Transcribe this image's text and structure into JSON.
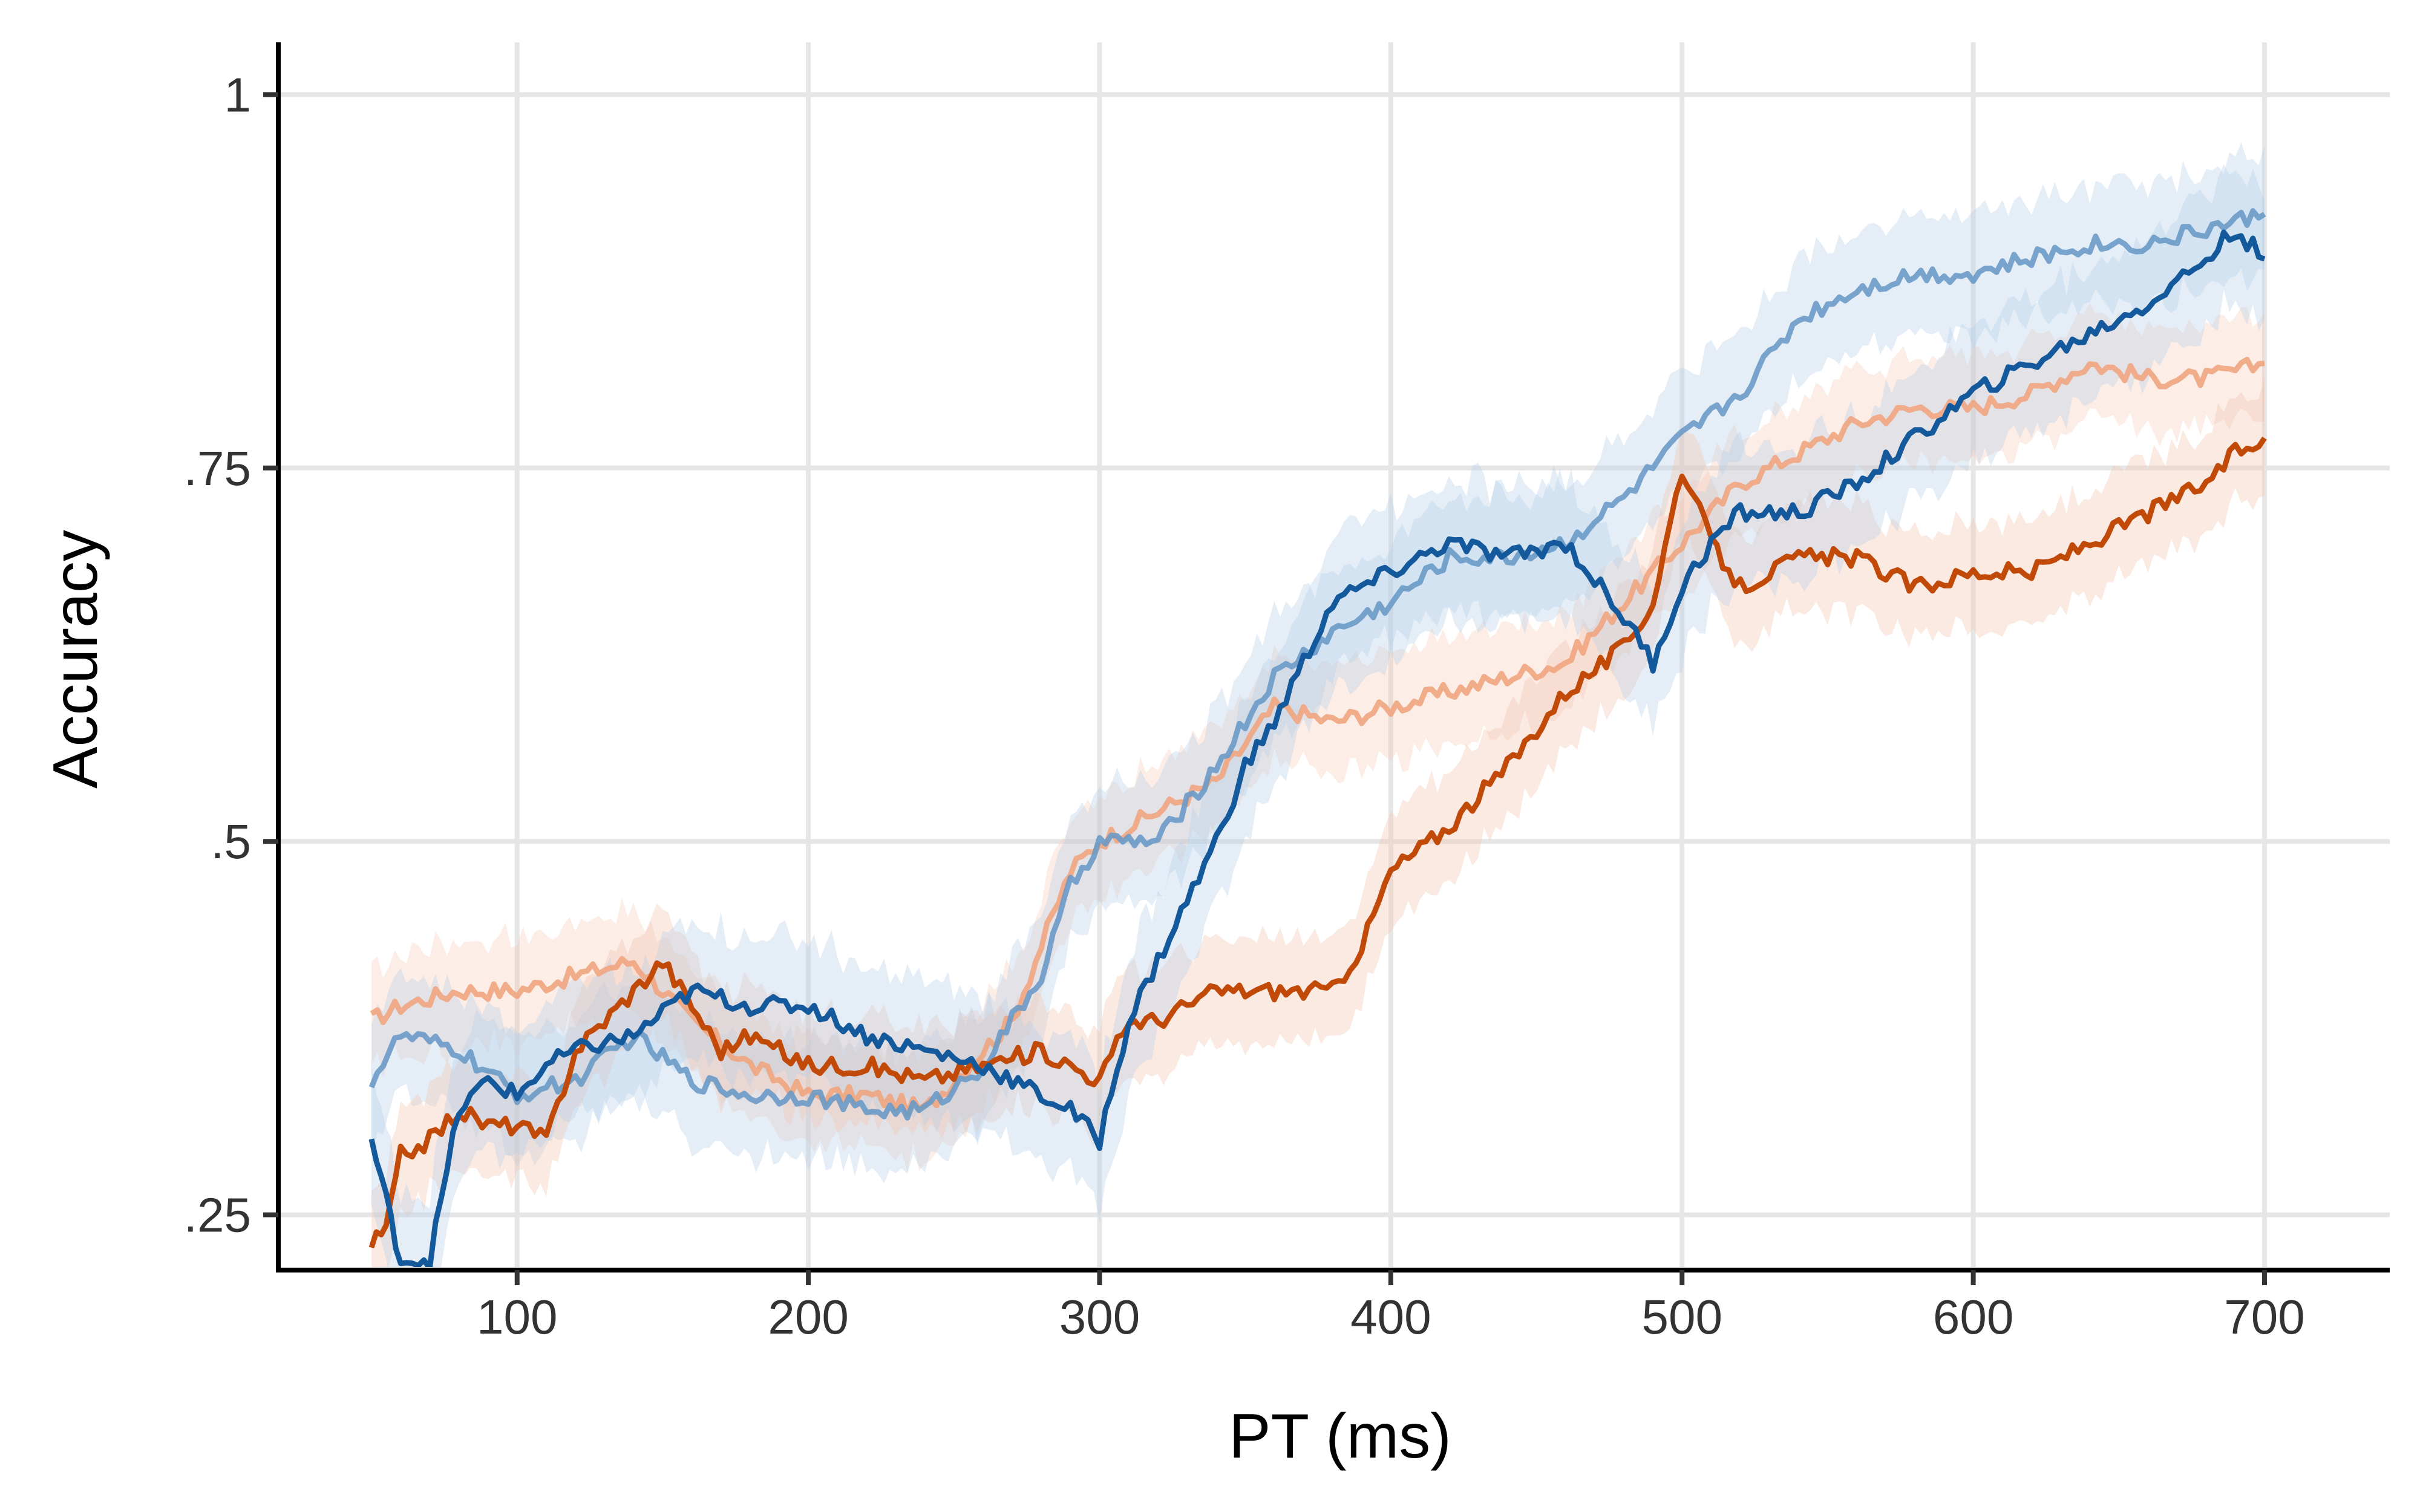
{
  "chart_data": {
    "type": "line",
    "xlabel": "PT (ms)",
    "ylabel": "Accuracy",
    "xlim": [
      18,
      743
    ],
    "ylim": [
      0.215,
      1.035
    ],
    "x_ticks": [
      {
        "value": 100,
        "label": "100"
      },
      {
        "value": 200,
        "label": "200"
      },
      {
        "value": 300,
        "label": "300"
      },
      {
        "value": 400,
        "label": "400"
      },
      {
        "value": 500,
        "label": "500"
      },
      {
        "value": 600,
        "label": "600"
      },
      {
        "value": 700,
        "label": "700"
      }
    ],
    "y_ticks": [
      {
        "value": 0.25,
        "label": ".25"
      },
      {
        "value": 0.5,
        "label": ".5"
      },
      {
        "value": 0.75,
        "label": ".75"
      },
      {
        "value": 1.0,
        "label": "1"
      }
    ],
    "grid": true,
    "legend": "none",
    "series": [
      {
        "color": "#f0a57f",
        "line_opacity": 0.9,
        "band_color": "#f6c5ab",
        "band_opacity": 0.3,
        "x": [
          50,
          60,
          80,
          100,
          120,
          140,
          160,
          180,
          200,
          220,
          240,
          260,
          270,
          280,
          290,
          300,
          320,
          340,
          360,
          380,
          400,
          420,
          440,
          460,
          480,
          500,
          520,
          540,
          560,
          580,
          600,
          620,
          640,
          660,
          680,
          700
        ],
        "y": [
          0.38,
          0.39,
          0.4,
          0.4,
          0.41,
          0.42,
          0.38,
          0.35,
          0.33,
          0.33,
          0.32,
          0.36,
          0.38,
          0.43,
          0.48,
          0.5,
          0.52,
          0.54,
          0.59,
          0.58,
          0.59,
          0.6,
          0.61,
          0.62,
          0.66,
          0.7,
          0.74,
          0.76,
          0.78,
          0.79,
          0.79,
          0.8,
          0.82,
          0.81,
          0.81,
          0.82
        ],
        "band": 0.035
      },
      {
        "color": "#6a9ac7",
        "line_opacity": 0.9,
        "band_color": "#b5cfe7",
        "band_opacity": 0.35,
        "x": [
          50,
          60,
          80,
          100,
          120,
          140,
          160,
          180,
          200,
          220,
          240,
          260,
          280,
          290,
          300,
          320,
          340,
          360,
          380,
          400,
          420,
          440,
          460,
          480,
          500,
          520,
          540,
          560,
          580,
          600,
          620,
          640,
          660,
          680,
          700
        ],
        "y": [
          0.34,
          0.37,
          0.36,
          0.33,
          0.34,
          0.37,
          0.34,
          0.33,
          0.33,
          0.32,
          0.32,
          0.35,
          0.41,
          0.47,
          0.5,
          0.5,
          0.55,
          0.61,
          0.64,
          0.66,
          0.69,
          0.69,
          0.7,
          0.73,
          0.77,
          0.8,
          0.85,
          0.87,
          0.88,
          0.88,
          0.89,
          0.9,
          0.9,
          0.91,
          0.92
        ],
        "band": 0.04
      },
      {
        "color": "#c14a09",
        "line_opacity": 1,
        "band_color": "#f2c4ab",
        "band_opacity": 0.35,
        "x": [
          50,
          55,
          60,
          70,
          80,
          90,
          100,
          110,
          120,
          130,
          140,
          150,
          160,
          170,
          180,
          200,
          220,
          240,
          260,
          280,
          300,
          310,
          320,
          340,
          360,
          380,
          390,
          400,
          420,
          440,
          460,
          480,
          490,
          500,
          510,
          520,
          540,
          560,
          580,
          600,
          620,
          640,
          660,
          680,
          690,
          700
        ],
        "y": [
          0.23,
          0.24,
          0.29,
          0.3,
          0.32,
          0.31,
          0.31,
          0.3,
          0.36,
          0.38,
          0.4,
          0.42,
          0.39,
          0.36,
          0.37,
          0.35,
          0.35,
          0.34,
          0.35,
          0.36,
          0.34,
          0.38,
          0.38,
          0.4,
          0.4,
          0.4,
          0.43,
          0.48,
          0.51,
          0.55,
          0.6,
          0.63,
          0.66,
          0.75,
          0.7,
          0.67,
          0.69,
          0.69,
          0.67,
          0.68,
          0.68,
          0.7,
          0.72,
          0.74,
          0.76,
          0.77
        ],
        "band": 0.035
      },
      {
        "color": "#13599b",
        "line_opacity": 1,
        "band_color": "#b5cfe7",
        "band_opacity": 0.35,
        "x": [
          50,
          55,
          60,
          70,
          80,
          90,
          100,
          110,
          120,
          140,
          160,
          180,
          200,
          220,
          240,
          260,
          280,
          290,
          300,
          310,
          320,
          340,
          350,
          360,
          370,
          380,
          400,
          420,
          440,
          460,
          480,
          490,
          500,
          510,
          520,
          540,
          560,
          580,
          600,
          620,
          640,
          660,
          680,
          690,
          700
        ],
        "y": [
          0.3,
          0.26,
          0.22,
          0.22,
          0.32,
          0.34,
          0.33,
          0.35,
          0.36,
          0.37,
          0.4,
          0.39,
          0.39,
          0.37,
          0.36,
          0.35,
          0.33,
          0.32,
          0.3,
          0.38,
          0.42,
          0.5,
          0.55,
          0.58,
          0.62,
          0.66,
          0.68,
          0.7,
          0.69,
          0.7,
          0.65,
          0.62,
          0.67,
          0.7,
          0.72,
          0.72,
          0.74,
          0.77,
          0.8,
          0.82,
          0.84,
          0.86,
          0.89,
          0.91,
          0.89
        ],
        "band": 0.045
      }
    ]
  }
}
